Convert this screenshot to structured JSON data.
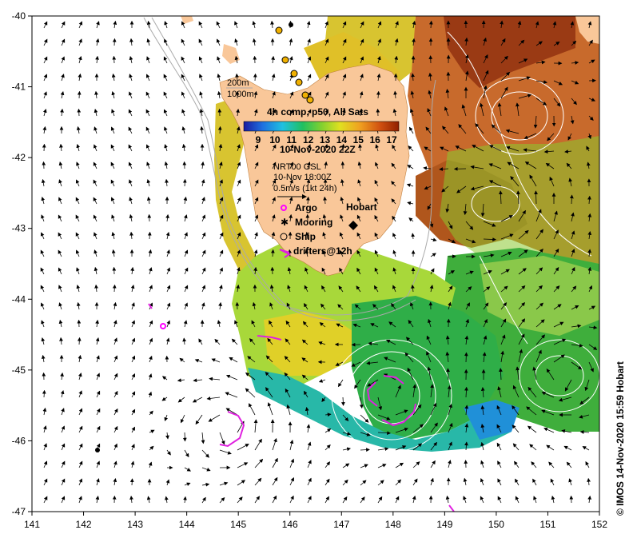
{
  "map": {
    "x_ticks": [
      "141",
      "142",
      "143",
      "144",
      "145",
      "146",
      "147",
      "148",
      "149",
      "150",
      "151",
      "152"
    ],
    "y_ticks": [
      "-40",
      "-41",
      "-42",
      "-43",
      "-44",
      "-45",
      "-46",
      "-47"
    ],
    "lon_range": [
      141,
      152
    ],
    "lat_range": [
      -40,
      -47
    ]
  },
  "legend": {
    "depth_200": "200m",
    "depth_1000": "1000m",
    "title": "4h comp, p50, All Sats",
    "scale_labels": [
      "9",
      "10",
      "11",
      "12",
      "13",
      "14",
      "15",
      "16",
      "17"
    ],
    "date": "10-Nov-2020 22Z",
    "current_source": "NRT00 GSL",
    "current_time": "10-Nov 18:00Z",
    "vector_scale": "0.5m/s (1kt 24h)",
    "argo": "Argo",
    "mooring": "Mooring",
    "ship": "Ship",
    "drifters": "drifters@12h"
  },
  "place": {
    "hobart": "Hobart"
  },
  "credit": "© IMOS 14-Nov-2020 15:59 Hobart",
  "colors": {
    "land": "#f9c799",
    "argo": "#ff00ff",
    "drifter": "#e020e0",
    "ship_fill": "#f0b000",
    "contour": "#ffffff",
    "bathymetry": "#aaaaaa"
  }
}
